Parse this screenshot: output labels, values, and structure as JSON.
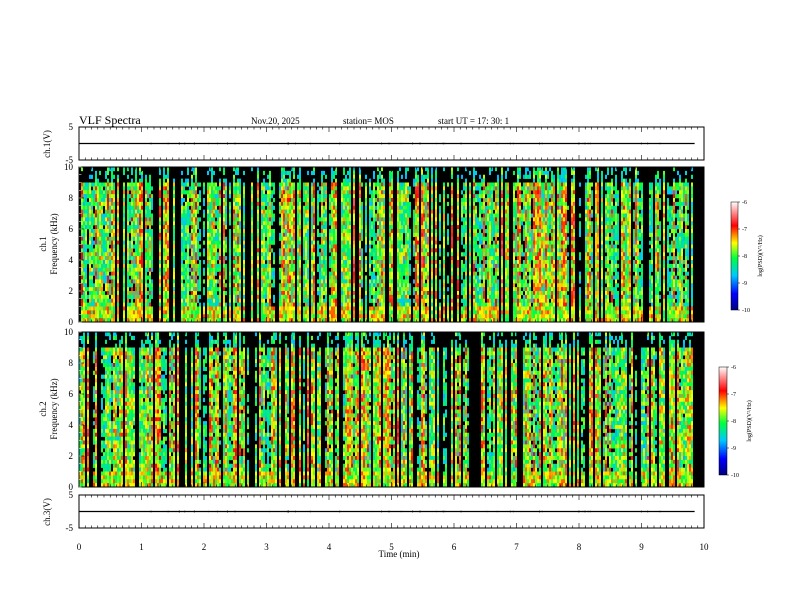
{
  "header": {
    "title": "VLF Spectra",
    "date": "Nov.20, 2025",
    "station": "station= MOS",
    "start": "start  UT  =   17: 30: 1"
  },
  "chart_data": [
    {
      "type": "line",
      "id": "ch1-waveform",
      "ylabel": "ch.1(V)",
      "ylim": [
        -5,
        5
      ],
      "yticks": [
        5,
        -5
      ],
      "x": [
        0,
        9.85
      ],
      "y": [
        0,
        0
      ],
      "note": "near-flat trace with sparse small spikes"
    },
    {
      "type": "heatmap",
      "id": "ch1-spectrogram",
      "title": "ch.1",
      "ylabel": "Frequency (kHz)",
      "ylim": [
        0,
        10
      ],
      "yticks": [
        0,
        2,
        4,
        6,
        8,
        10
      ],
      "xlim": [
        0,
        10
      ],
      "data_extent_min": 9.85,
      "colorbar": {
        "label": "log(PSD)(V²/Hz)",
        "ticks": [
          -6,
          -7,
          -8,
          -9,
          -10
        ],
        "range": [
          -10,
          -6
        ]
      }
    },
    {
      "type": "heatmap",
      "id": "ch2-spectrogram",
      "title": "ch.2",
      "ylabel": "Frequency (kHz)",
      "ylim": [
        0,
        10
      ],
      "yticks": [
        0,
        2,
        4,
        6,
        8,
        10
      ],
      "xlim": [
        0,
        10
      ],
      "data_extent_min": 9.85,
      "colorbar": {
        "label": "log(PSD)(V²/Hz)",
        "ticks": [
          -6,
          -7,
          -8,
          -9,
          -10
        ],
        "range": [
          -10,
          -6
        ]
      }
    },
    {
      "type": "line",
      "id": "ch3-waveform",
      "ylabel": "ch.3(V)",
      "ylim": [
        -5,
        5
      ],
      "yticks": [
        5,
        -5
      ],
      "x": [
        0,
        9.85
      ],
      "y": [
        0,
        0
      ],
      "note": "near-flat trace"
    }
  ],
  "xaxis": {
    "label": "Time (min)",
    "ticks": [
      0,
      1,
      2,
      3,
      4,
      5,
      6,
      7,
      8,
      9,
      10
    ],
    "range": [
      0,
      10
    ]
  },
  "labels": {
    "ch1_wave": "ch.1(V)",
    "ch3_wave": "ch.3(V)",
    "ch1_spec": "ch.1",
    "ch2_spec": "ch.2",
    "freq": "Frequency (kHz)",
    "colorbar": "log(PSD)(V²/Hz)"
  }
}
